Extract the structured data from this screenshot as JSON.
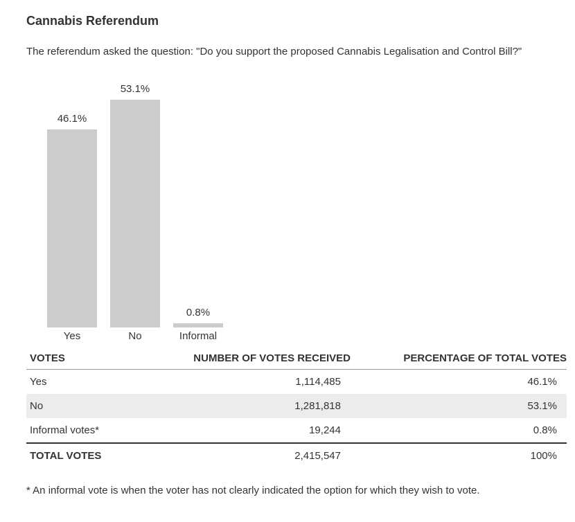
{
  "page": {
    "title": "Cannabis Referendum",
    "description": "The referendum asked the question: \"Do you support the proposed Cannabis Legalisation and Control Bill?\"",
    "footnote": "* An informal vote is when the voter has not clearly indicated the option for which they wish to vote."
  },
  "chart_data": {
    "type": "bar",
    "categories": [
      "Yes",
      "No",
      "Informal"
    ],
    "values": [
      46.1,
      53.1,
      0.8
    ],
    "value_labels": [
      "46.1%",
      "53.1%",
      "0.8%"
    ],
    "title": "",
    "xlabel": "",
    "ylabel": "",
    "ylim": [
      0,
      60
    ],
    "grid": false,
    "legend": false,
    "bar_color": "#cccccc"
  },
  "table": {
    "columns": [
      "VOTES",
      "NUMBER OF VOTES RECEIVED",
      "PERCENTAGE OF TOTAL VOTES"
    ],
    "rows": [
      {
        "label": "Yes",
        "votes": "1,114,485",
        "percent": "46.1%"
      },
      {
        "label": "No",
        "votes": "1,281,818",
        "percent": "53.1%"
      },
      {
        "label": "Informal votes*",
        "votes": "19,244",
        "percent": "0.8%"
      }
    ],
    "total": {
      "label": "TOTAL VOTES",
      "votes": "2,415,547",
      "percent": "100%"
    }
  },
  "colors": {
    "bar": "#cccccc",
    "row_alt_bg": "#ececec",
    "text": "#333333",
    "header_border": "#999999",
    "total_border": "#333333"
  }
}
